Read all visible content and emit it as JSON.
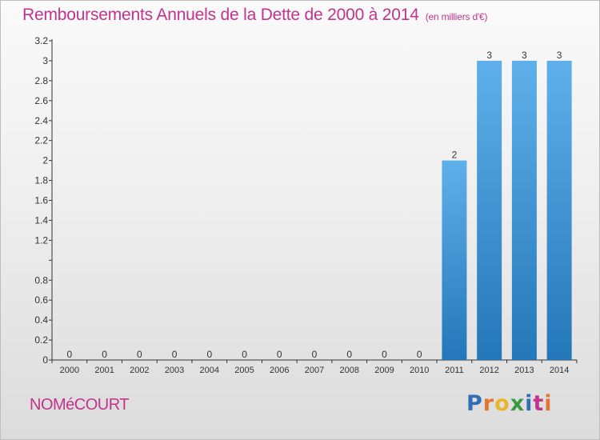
{
  "chart_data": {
    "type": "bar",
    "title": "Remboursements Annuels de la Dette de 2000 à 2014",
    "subtitle": "(en milliers d'€)",
    "categories": [
      "2000",
      "2001",
      "2002",
      "2003",
      "2004",
      "2005",
      "2006",
      "2007",
      "2008",
      "2009",
      "2010",
      "2011",
      "2012",
      "2013",
      "2014"
    ],
    "values": [
      0,
      0,
      0,
      0,
      0,
      0,
      0,
      0,
      0,
      0,
      0,
      2,
      3,
      3,
      3
    ],
    "value_labels": [
      "0",
      "0",
      "0",
      "0",
      "0",
      "0",
      "0",
      "0",
      "0",
      "0",
      "0",
      "2",
      "3",
      "3",
      "3"
    ],
    "ylim": [
      0,
      3.2
    ],
    "yticks": [
      0,
      0.2,
      0.4,
      0.6,
      0.8,
      1,
      1.2,
      1.4,
      1.6,
      1.8,
      2,
      2.2,
      2.4,
      2.6,
      2.8,
      3,
      3.2
    ],
    "ytick_labels": [
      "0",
      "0.2",
      "0.4",
      "0.6",
      "0.8",
      "",
      "1.2",
      "1.4",
      "1.6",
      "1.8",
      "2",
      "2.2",
      "2.4",
      "2.6",
      "2.8",
      "3",
      "3.2"
    ],
    "grid": false,
    "legend": "none",
    "colors": {
      "bar_light": "#5fb0ea",
      "bar_dark": "#2477b8",
      "title": "#c2338b",
      "axis": "#333333"
    }
  },
  "commune": "NOMéCOURT",
  "brand": {
    "letters": [
      "P",
      "r",
      "o",
      "x",
      "i",
      "t",
      "i"
    ],
    "colors": [
      "#2f6fb5",
      "#e2752f",
      "#e8b52c",
      "#3a9b3e",
      "#2f6fb5",
      "#c2338b",
      "#e2752f"
    ]
  }
}
